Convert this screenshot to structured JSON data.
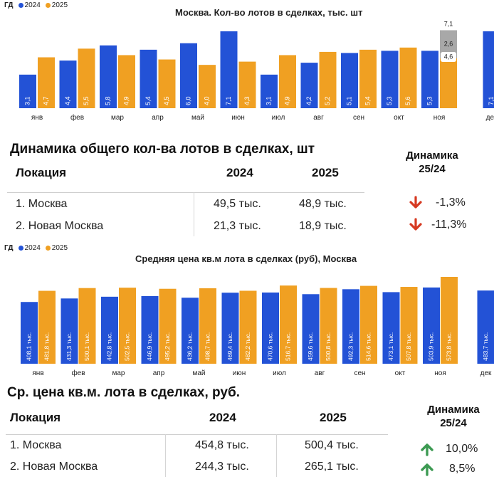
{
  "legend": {
    "prefix": "ГД",
    "s1": "2024",
    "s2": "2025"
  },
  "colors": {
    "c2024": "#2352d6",
    "c2025": "#f0a022",
    "forecast_light": "#d7d7d7",
    "forecast_mid": "#a8a8a8",
    "up": "#3c9a52",
    "down": "#d63a22"
  },
  "chart_data": [
    {
      "type": "bar",
      "title": "Москва. Кол-во лотов в сделках, тыс. шт",
      "categories": [
        "янв",
        "фев",
        "мар",
        "апр",
        "май",
        "июн",
        "июл",
        "авг",
        "сен",
        "окт",
        "ноя",
        "дек"
      ],
      "series": [
        {
          "name": "2024",
          "values": [
            3.1,
            4.4,
            5.8,
            5.4,
            6.0,
            7.1,
            3.1,
            4.2,
            5.1,
            5.3,
            5.3,
            7.1
          ],
          "labels": [
            "3,1",
            "4,4",
            "5,8",
            "5,4",
            "6,0",
            "7,1",
            "3,1",
            "4,2",
            "5,1",
            "5,3",
            "5,3",
            "7,1"
          ]
        },
        {
          "name": "2025",
          "values": [
            4.7,
            5.5,
            4.9,
            4.5,
            4.0,
            4.3,
            4.9,
            5.2,
            5.4,
            5.6,
            4.6,
            null
          ],
          "labels": [
            "4,7",
            "5,5",
            "4,9",
            "4,5",
            "4,0",
            "4,3",
            "4,9",
            "5,2",
            "5,4",
            "5,6",
            "4,6",
            ""
          ]
        }
      ],
      "forecast": {
        "category": "ноя",
        "segments": [
          {
            "value": 4.6,
            "label": "4,6"
          },
          {
            "value": 2.6,
            "label": "2,6"
          },
          {
            "value": 7.1,
            "label": "7,1"
          }
        ]
      },
      "ylim": [
        0,
        7.1
      ]
    },
    {
      "type": "bar",
      "title": "Средняя цена кв.м  лота в сделках (руб), Москва",
      "categories": [
        "янв",
        "фев",
        "мар",
        "апр",
        "май",
        "июн",
        "июл",
        "авг",
        "сен",
        "окт",
        "ноя",
        "дек"
      ],
      "series": [
        {
          "name": "2024",
          "values": [
            408.1,
            431.3,
            442.8,
            446.9,
            436.2,
            469.4,
            470.6,
            459.6,
            492.3,
            473.1,
            503.9,
            483.7
          ],
          "labels": [
            "408,1 тыс.",
            "431,3 тыс.",
            "442,8 тыс.",
            "446,9 тыс.",
            "436,2 тыс.",
            "469,4 тыс.",
            "470,6 тыс.",
            "459,6 тыс.",
            "492,3 тыс.",
            "473,1 тыс.",
            "503,9 тыс.",
            "483,7 тыс."
          ]
        },
        {
          "name": "2025",
          "values": [
            481.8,
            500.1,
            502.5,
            495.2,
            498.7,
            482.2,
            516.7,
            500.8,
            514.6,
            507.8,
            573.8,
            null
          ],
          "labels": [
            "481,8 тыс.",
            "500,1 тыс.",
            "502,5 тыс.",
            "495,2 тыс.",
            "498,7 тыс.",
            "482,2 тыс.",
            "516,7 тыс.",
            "500,8 тыс.",
            "514,6 тыс.",
            "507,8 тыс.",
            "573,8 тыс.",
            ""
          ]
        }
      ],
      "ylim": [
        0,
        573.8
      ]
    }
  ],
  "table1": {
    "title": "Динамика общего кол-ва лотов в сделках, шт",
    "head": {
      "loc": "Локация",
      "y1": "2024",
      "y2": "2025",
      "dyn": "Динамика\n25/24"
    },
    "rows": [
      {
        "loc": "1. Москва",
        "y1": "49,5 тыс.",
        "y2": "48,9 тыс.",
        "dyn": "-1,3%",
        "dir": "down"
      },
      {
        "loc": "2. Новая Москва",
        "y1": "21,3 тыс.",
        "y2": "18,9 тыс.",
        "dyn": "-11,3%",
        "dir": "down"
      }
    ]
  },
  "table2": {
    "title": "Ср. цена кв.м. лота в сделках, руб.",
    "head": {
      "loc": "Локация",
      "y1": "2024",
      "y2": "2025",
      "dyn": "Динамика\n25/24"
    },
    "rows": [
      {
        "loc": "1. Москва",
        "y1": "454,8 тыс.",
        "y2": "500,4 тыс.",
        "dyn": "10,0%",
        "dir": "up"
      },
      {
        "loc": "2. Новая Москва",
        "y1": "244,3 тыс.",
        "y2": "265,1 тыс.",
        "dyn": "8,5%",
        "dir": "up"
      }
    ]
  }
}
